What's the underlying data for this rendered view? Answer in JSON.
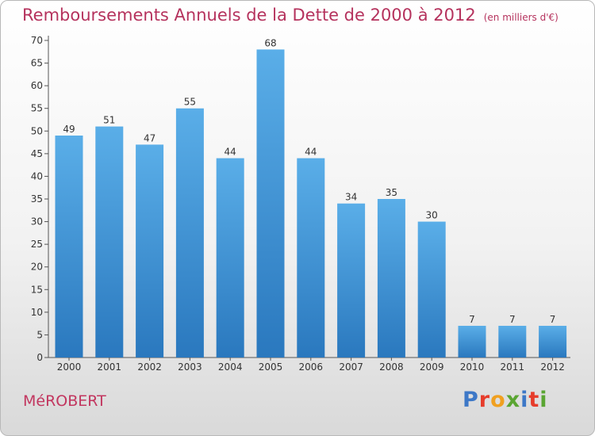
{
  "header": {
    "title": "Remboursements Annuels de la Dette de 2000 à 2012",
    "subtitle": "(en milliers d'€)"
  },
  "footer": {
    "place": "MéROBERT",
    "logo": [
      "P",
      "r",
      "o",
      "x",
      "i",
      "t",
      "i"
    ]
  },
  "colors": {
    "bar_top": "#5aaee8",
    "bar_bottom": "#2a78be",
    "title": "#b5325d"
  },
  "chart_data": {
    "type": "bar",
    "title": "Remboursements Annuels de la Dette de 2000 à 2012",
    "subtitle": "(en milliers d'€)",
    "categories": [
      "2000",
      "2001",
      "2002",
      "2003",
      "2004",
      "2005",
      "2006",
      "2007",
      "2008",
      "2009",
      "2010",
      "2011",
      "2012"
    ],
    "values": [
      49,
      51,
      47,
      55,
      44,
      68,
      44,
      34,
      35,
      30,
      7,
      7,
      7
    ],
    "ylim": [
      0,
      70
    ],
    "yticks": [
      0,
      5,
      10,
      15,
      20,
      25,
      30,
      35,
      40,
      45,
      50,
      55,
      60,
      65,
      70
    ],
    "grid": false,
    "legend": "none"
  }
}
